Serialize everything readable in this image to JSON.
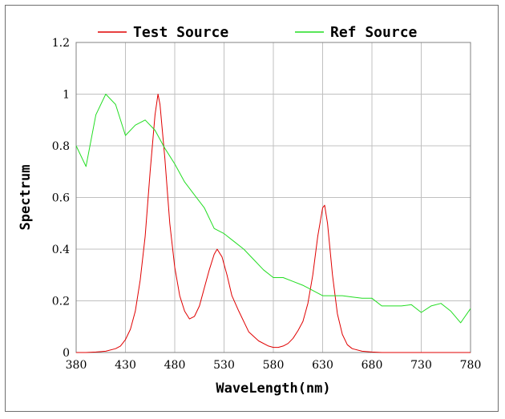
{
  "chart_data": {
    "type": "line",
    "xlabel": "WaveLength(nm)",
    "ylabel": "Spectrum",
    "xlim": [
      380,
      780
    ],
    "ylim": [
      0,
      1.2
    ],
    "xticks": [
      "380",
      "430",
      "480",
      "530",
      "580",
      "630",
      "680",
      "730",
      "780"
    ],
    "yticks": [
      "0",
      "0.2",
      "0.4",
      "0.6",
      "0.8",
      "1",
      "1.2"
    ],
    "grid": true,
    "legend_position": "top",
    "series": [
      {
        "name": "Test Source",
        "color": "#e00000",
        "x": [
          380,
          390,
          400,
          410,
          420,
          425,
          430,
          435,
          440,
          445,
          450,
          455,
          460,
          463,
          465,
          470,
          475,
          480,
          485,
          490,
          495,
          500,
          505,
          510,
          515,
          520,
          523,
          528,
          533,
          538,
          545,
          555,
          565,
          575,
          580,
          585,
          590,
          595,
          600,
          605,
          610,
          615,
          620,
          625,
          630,
          632,
          635,
          640,
          645,
          650,
          655,
          660,
          670,
          680,
          690,
          700,
          720,
          740,
          760,
          780
        ],
        "y": [
          0,
          0,
          0.002,
          0.005,
          0.015,
          0.025,
          0.05,
          0.09,
          0.16,
          0.28,
          0.45,
          0.7,
          0.92,
          1.0,
          0.96,
          0.75,
          0.5,
          0.33,
          0.22,
          0.16,
          0.13,
          0.14,
          0.18,
          0.25,
          0.32,
          0.38,
          0.4,
          0.37,
          0.3,
          0.22,
          0.16,
          0.08,
          0.045,
          0.025,
          0.02,
          0.02,
          0.025,
          0.035,
          0.055,
          0.085,
          0.12,
          0.19,
          0.3,
          0.45,
          0.56,
          0.57,
          0.5,
          0.3,
          0.15,
          0.07,
          0.03,
          0.015,
          0.005,
          0.002,
          0,
          0,
          0,
          0,
          0,
          0
        ]
      },
      {
        "name": "Ref Source",
        "color": "#22dd22",
        "x": [
          380,
          390,
          400,
          410,
          420,
          430,
          440,
          450,
          460,
          470,
          480,
          490,
          500,
          510,
          520,
          530,
          540,
          550,
          560,
          570,
          580,
          590,
          600,
          610,
          620,
          630,
          640,
          650,
          660,
          670,
          680,
          690,
          700,
          710,
          720,
          730,
          740,
          750,
          760,
          770,
          780
        ],
        "y": [
          0.8,
          0.72,
          0.92,
          1.0,
          0.96,
          0.84,
          0.88,
          0.9,
          0.86,
          0.79,
          0.73,
          0.66,
          0.61,
          0.56,
          0.48,
          0.46,
          0.43,
          0.4,
          0.36,
          0.32,
          0.29,
          0.29,
          0.275,
          0.26,
          0.24,
          0.22,
          0.22,
          0.22,
          0.215,
          0.21,
          0.21,
          0.18,
          0.18,
          0.18,
          0.185,
          0.155,
          0.18,
          0.19,
          0.16,
          0.115,
          0.17
        ]
      }
    ]
  }
}
